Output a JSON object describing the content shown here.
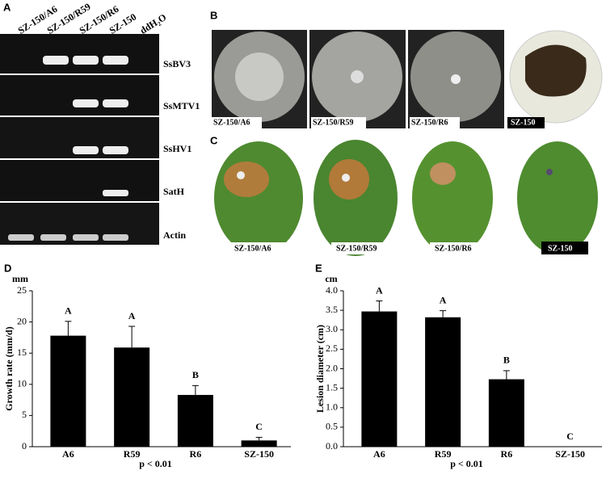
{
  "gel": {
    "panel_label": "A",
    "lanes": [
      "SZ-150/A6",
      "SZ-150/R59",
      "SZ-150/R6",
      "SZ-150",
      "ddH₂O"
    ],
    "genes": [
      "SsBV3",
      "SsMTV1",
      "SsHV1",
      "SatH",
      "Actin"
    ]
  },
  "colonies": {
    "panel_label": "B",
    "labels": [
      "SZ-150/A6",
      "SZ-150/R59",
      "SZ-150/R6",
      "SZ-150"
    ]
  },
  "leaves": {
    "panel_label": "C",
    "labels": [
      "SZ-150/A6",
      "SZ-150/R59",
      "SZ-150/R6",
      "SZ-150"
    ]
  },
  "chart_data": [
    {
      "type": "bar",
      "panel_label": "D",
      "unit": "mm",
      "y_label": "Growth rate (mm/d)",
      "x_label": "p < 0.01",
      "categories": [
        "A6",
        "R59",
        "R6",
        "SZ-150"
      ],
      "values": [
        17.8,
        15.9,
        8.3,
        1.0
      ],
      "errors": [
        2.3,
        3.4,
        1.5,
        0.5
      ],
      "annotations": [
        "A",
        "A",
        "B",
        "C"
      ],
      "color": "#000000",
      "ylim": [
        0,
        25
      ],
      "yticks": [
        0,
        5,
        10,
        15,
        20,
        25
      ]
    },
    {
      "type": "bar",
      "panel_label": "E",
      "unit": "cm",
      "y_label": "Lesion diameter (cm)",
      "x_label": "p < 0.01",
      "categories": [
        "A6",
        "R59",
        "R6",
        "SZ-150"
      ],
      "values": [
        3.47,
        3.32,
        1.73,
        0
      ],
      "errors": [
        0.27,
        0.17,
        0.22,
        0
      ],
      "annotations": [
        "A",
        "A",
        "B",
        "C"
      ],
      "color": "#000000",
      "ylim": [
        0,
        4
      ],
      "yticks": [
        {
          "value": 0,
          "label": "0.0"
        },
        {
          "value": 0.5,
          "label": "0.5"
        },
        {
          "value": 1,
          "label": "1.0"
        },
        {
          "value": 1.5,
          "label": "1.5"
        },
        {
          "value": 2,
          "label": "2.0"
        },
        {
          "value": 2.5,
          "label": "2.5"
        },
        {
          "value": 3,
          "label": "3.0"
        },
        {
          "value": 3.5,
          "label": "3.5"
        },
        {
          "value": 4,
          "label": "4.0"
        }
      ]
    }
  ]
}
